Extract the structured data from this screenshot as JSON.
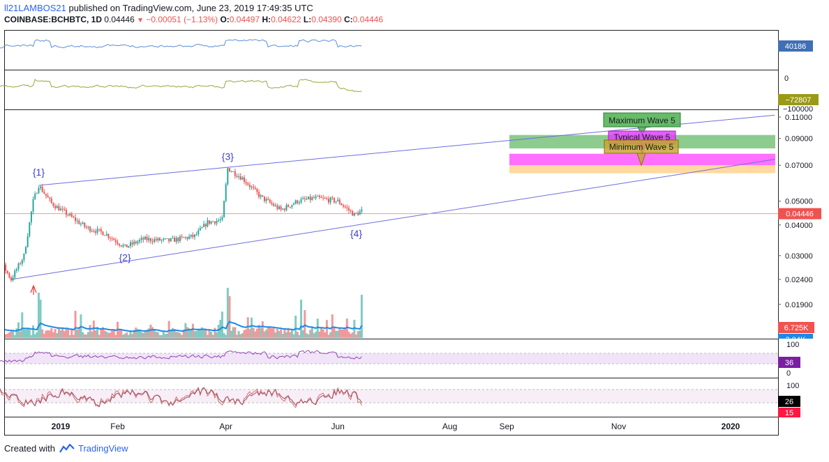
{
  "header": {
    "user": "ll21LAMBOS21",
    "published_text": "published on TradingView.com, June 23, 2019 17:49:35 UTC",
    "symbol": "COINBASE:BCHBTC, 1D",
    "last": "0.04446",
    "change": "−0.00051 (−1.13%)",
    "o_label": "O:",
    "o": "0.04497",
    "h_label": "H:",
    "h": "0.04622",
    "l_label": "L:",
    "l": "0.04390",
    "c_label": "C:",
    "c": "0.04446"
  },
  "footer": {
    "created_with": "Created with",
    "brand": "TradingView"
  },
  "colors": {
    "up": "#26a69a",
    "down": "#ef5350",
    "obv": "#5b8dd6",
    "adline": "#9aa53a",
    "volma": "#1e88e5",
    "rsi": "#9c27b0",
    "stoch": "#c06070",
    "wave": "#3d3dd6",
    "trend": "#6c6ce0"
  },
  "panes": {
    "obv": {
      "value_badge": "40186"
    },
    "ad": {
      "scale_top": "0",
      "scale_bottom": "−100000",
      "value_badge": "−72807"
    },
    "rsi": {
      "scale": [
        "100",
        "0"
      ],
      "value_badge": "36"
    },
    "stoch": {
      "scale": [
        "100"
      ],
      "k_badge": "26",
      "d_badge": "15"
    },
    "volume": {
      "value_badge": "6.725K",
      "ma_badge": "3.04K"
    }
  },
  "chart_data": {
    "type": "candlestick",
    "title": "COINBASE:BCHBTC, 1D",
    "price_axis_scale": "log",
    "price_ticks": [
      "0.11000",
      "0.09000",
      "0.07000",
      "0.05000",
      "0.04000",
      "0.03000",
      "0.02400",
      "0.01900"
    ],
    "last_price_badge": "0.04446",
    "x_ticks": [
      "2019",
      "Feb",
      "Apr",
      "Jun",
      "Aug",
      "Sep",
      "Nov",
      "2020"
    ],
    "wave_labels": [
      "{1}",
      "{2}",
      "{3}",
      "{4}"
    ],
    "wave_points": [
      {
        "label": "{1}",
        "date": "2018-12-20",
        "price": 0.058
      },
      {
        "label": "{2}",
        "date": "2019-02-05",
        "price": 0.0325
      },
      {
        "label": "{3}",
        "date": "2019-04-02",
        "price": 0.068
      },
      {
        "label": "{4}",
        "date": "2019-06-11",
        "price": 0.0402
      }
    ],
    "trendlines": [
      {
        "from": {
          "date": "2018-12-20",
          "price": 0.058
        },
        "to": {
          "date": "2020-01-25",
          "price": 0.112
        }
      },
      {
        "from": {
          "date": "2018-12-05",
          "price": 0.024
        },
        "to": {
          "date": "2020-01-25",
          "price": 0.074
        }
      }
    ],
    "targets": [
      {
        "label": "Maximum Wave 5",
        "low": 0.082,
        "high": 0.093,
        "color": "#66bb6a"
      },
      {
        "label": "Typical Wave 5",
        "low": 0.07,
        "high": 0.078,
        "color": "#ff40ff"
      },
      {
        "label": "Minimum Wave 5",
        "low": 0.065,
        "high": 0.07,
        "color": "#ffcc80"
      }
    ],
    "price_path": [
      [
        "2018-11-15",
        0.0415
      ],
      [
        "2018-11-22",
        0.033
      ],
      [
        "2018-11-28",
        0.0295
      ],
      [
        "2018-12-05",
        0.024
      ],
      [
        "2018-12-12",
        0.03
      ],
      [
        "2018-12-17",
        0.05
      ],
      [
        "2018-12-20",
        0.058
      ],
      [
        "2018-12-27",
        0.049
      ],
      [
        "2019-01-05",
        0.044
      ],
      [
        "2019-01-15",
        0.039
      ],
      [
        "2019-01-25",
        0.037
      ],
      [
        "2019-02-05",
        0.0325
      ],
      [
        "2019-02-15",
        0.035
      ],
      [
        "2019-03-01",
        0.0345
      ],
      [
        "2019-03-15",
        0.036
      ],
      [
        "2019-03-22",
        0.041
      ],
      [
        "2019-03-30",
        0.042
      ],
      [
        "2019-04-02",
        0.068
      ],
      [
        "2019-04-10",
        0.062
      ],
      [
        "2019-04-20",
        0.052
      ],
      [
        "2019-05-01",
        0.046
      ],
      [
        "2019-05-10",
        0.05
      ],
      [
        "2019-05-20",
        0.0515
      ],
      [
        "2019-06-01",
        0.05
      ],
      [
        "2019-06-10",
        0.044
      ],
      [
        "2019-06-14",
        0.0455
      ]
    ]
  }
}
